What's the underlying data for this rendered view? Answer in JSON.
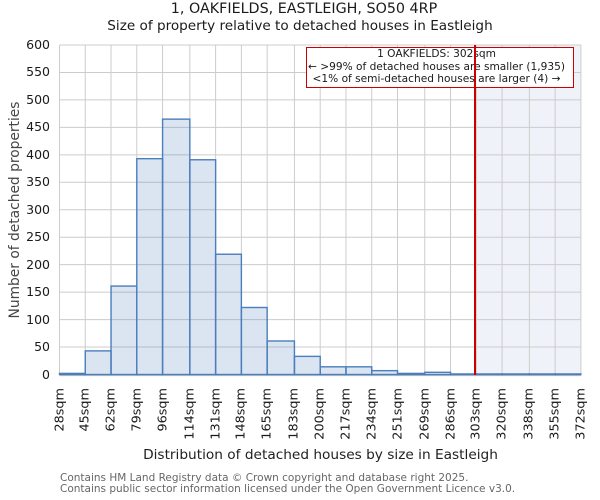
{
  "chart_data": {
    "type": "bar",
    "title": "1, OAKFIELDS, EASTLEIGH, SO50 4RP",
    "subtitle": "Size of property relative to detached houses in Eastleigh",
    "xlabel": "Distribution of detached houses by size in Eastleigh",
    "ylabel": "Number of detached properties",
    "categories": [
      "28sqm",
      "45sqm",
      "62sqm",
      "79sqm",
      "96sqm",
      "114sqm",
      "131sqm",
      "148sqm",
      "165sqm",
      "183sqm",
      "200sqm",
      "217sqm",
      "234sqm",
      "251sqm",
      "269sqm",
      "286sqm",
      "303sqm",
      "320sqm",
      "338sqm",
      "355sqm",
      "372sqm"
    ],
    "bin_edges_sqm": [
      28,
      45,
      62,
      79,
      96,
      114,
      131,
      148,
      165,
      183,
      200,
      217,
      234,
      251,
      269,
      286,
      303,
      320,
      338,
      355,
      372
    ],
    "values": [
      2,
      43,
      161,
      393,
      465,
      391,
      219,
      122,
      61,
      33,
      14,
      14,
      7,
      2,
      4,
      1,
      1,
      1,
      1,
      1
    ],
    "yticks": [
      0,
      50,
      100,
      150,
      200,
      250,
      300,
      350,
      400,
      450,
      500,
      550,
      600
    ],
    "ylim": [
      0,
      600
    ],
    "grid": true,
    "legend": null,
    "marker": {
      "value_sqm": 302,
      "label": "1 OAKFIELDS: 302sqm"
    },
    "shaded_region_sqm": [
      302,
      372
    ],
    "annotation": {
      "line1": "1 OAKFIELDS: 302sqm",
      "line2": "← >99% of detached houses are smaller (1,935)",
      "line3": "<1% of semi-detached houses are larger (4) →"
    },
    "colors": {
      "bar_fill": "rgba(74,126,189,0.2)",
      "bar_edge": "#4a7ebd",
      "marker_line": "#cc0000",
      "annotation_border": "#cc0000",
      "shade": "rgba(74,126,189,0.09)",
      "grid": "#cccccc",
      "spine": "#c0c0c0"
    }
  },
  "footer": {
    "line1": "Contains HM Land Registry data © Crown copyright and database right 2025.",
    "line2": "Contains public sector information licensed under the Open Government Licence v3.0."
  }
}
